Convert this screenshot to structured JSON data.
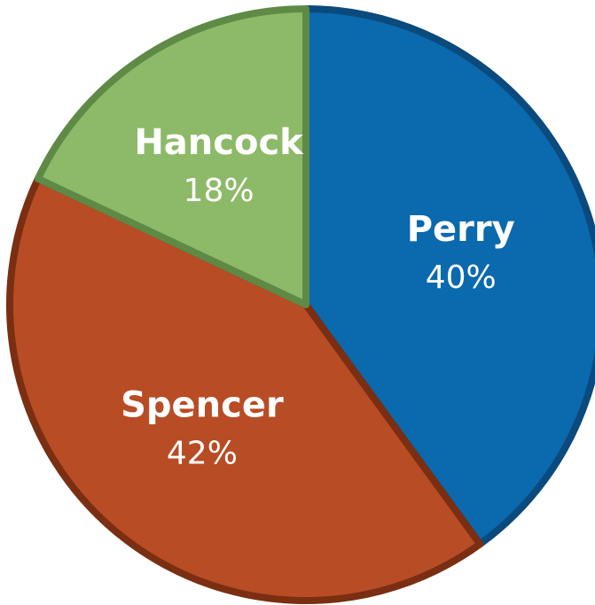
{
  "chart_data": {
    "type": "pie",
    "categories": [
      "Perry",
      "Spencer",
      "Hancock"
    ],
    "values": [
      40,
      42,
      18
    ],
    "value_labels": [
      "40%",
      "42%",
      "18%"
    ],
    "colors": [
      "#0b69ad",
      "#b84c24",
      "#8dba68"
    ],
    "edge_colors": [
      "#0a4a7c",
      "#7a2e12",
      "#5e8a46"
    ]
  }
}
